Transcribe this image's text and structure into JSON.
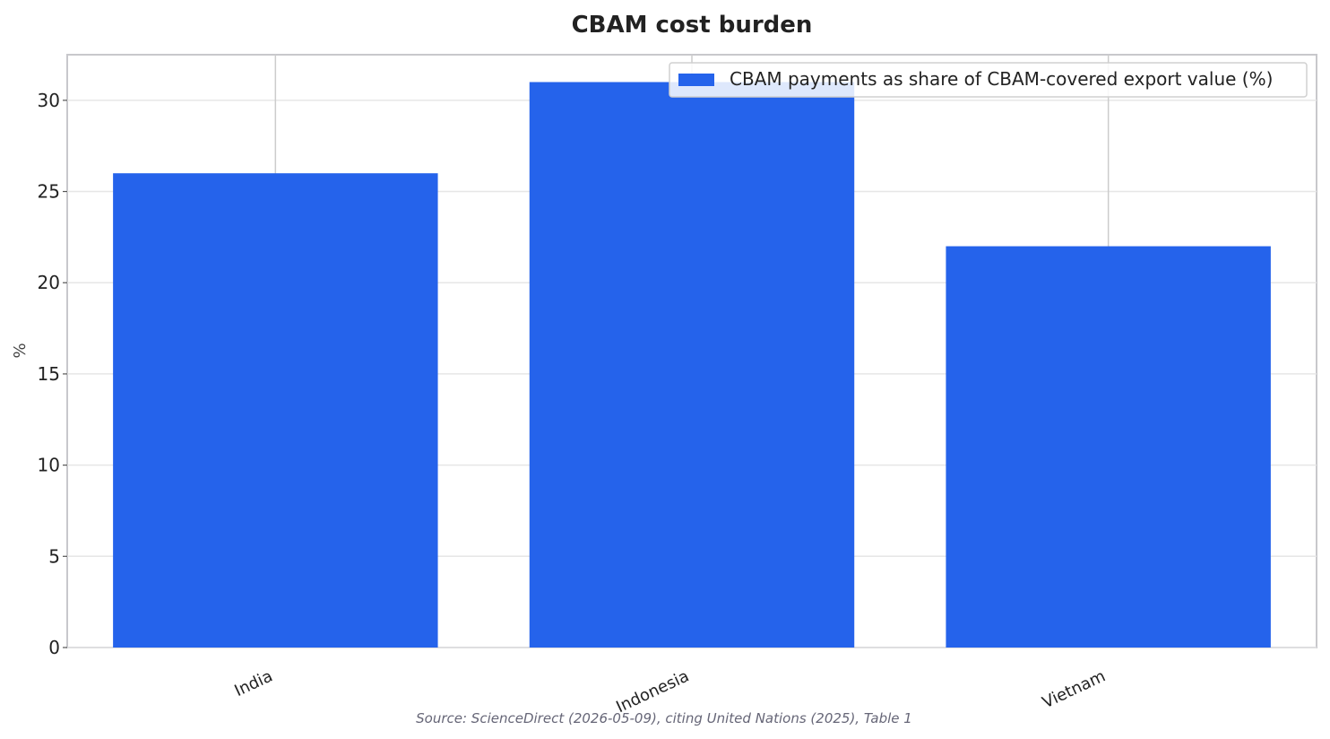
{
  "chart_data": {
    "type": "bar",
    "title": "CBAM cost burden",
    "xlabel": "",
    "ylabel": "%",
    "categories": [
      "India",
      "Indonesia",
      "Vietnam"
    ],
    "series": [
      {
        "name": "CBAM payments as share of CBAM-covered export value (%)",
        "values": [
          26,
          31,
          22
        ]
      }
    ],
    "ylim": [
      0,
      32.5
    ],
    "yticks": [
      "0",
      "5",
      "10",
      "15",
      "20",
      "25",
      "30"
    ],
    "grid": true,
    "legend_position": "top-right",
    "colors": {
      "bar": "#2563eb",
      "grid": "#e6e6e6",
      "axes": "#c8c8cc"
    }
  },
  "source_note": "Source: ScienceDirect (2026-05-09), citing United Nations (2025), Table 1"
}
